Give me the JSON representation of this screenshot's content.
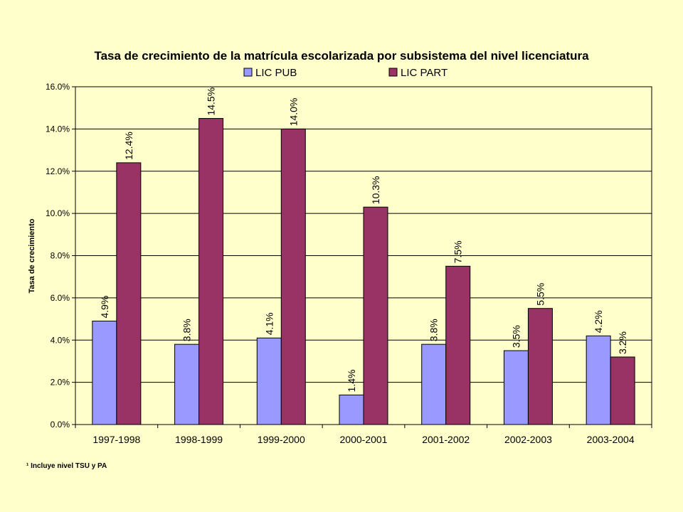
{
  "chart_data": {
    "type": "bar",
    "title": "Tasa de crecimiento de la matrícula escolarizada por subsistema del nivel licenciatura",
    "ylabel": "Tasa de crecimiento",
    "xlabel": "",
    "categories": [
      "1997-1998",
      "1998-1999",
      "1999-2000",
      "2000-2001",
      "2001-2002",
      "2002-2003",
      "2003-2004"
    ],
    "series": [
      {
        "name": "LIC PUB",
        "color": "#9999FF",
        "values": [
          4.9,
          3.8,
          4.1,
          1.4,
          3.8,
          3.5,
          4.2
        ],
        "labels": [
          "4.9%",
          "3.8%",
          "4.1%",
          "1.4%",
          "3.8%",
          "3.5%",
          "4.2%"
        ]
      },
      {
        "name": "LIC PART",
        "color": "#993366",
        "values": [
          12.4,
          14.5,
          14.0,
          10.3,
          7.5,
          5.5,
          3.2
        ],
        "labels": [
          "12.4%",
          "14.5%",
          "14.0%",
          "10.3%",
          "7.5%",
          "5.5%",
          "3.2%"
        ]
      }
    ],
    "ylim": [
      0,
      16
    ],
    "yticks": [
      "0.0%",
      "2.0%",
      "4.0%",
      "6.0%",
      "8.0%",
      "10.0%",
      "12.0%",
      "14.0%",
      "16.0%"
    ],
    "grid": true,
    "legend_position": "top",
    "footnote": "¹ Incluye nivel TSU y PA",
    "colors": {
      "background": "#FFFFCC",
      "plot_background": "#FFFFCC"
    }
  }
}
